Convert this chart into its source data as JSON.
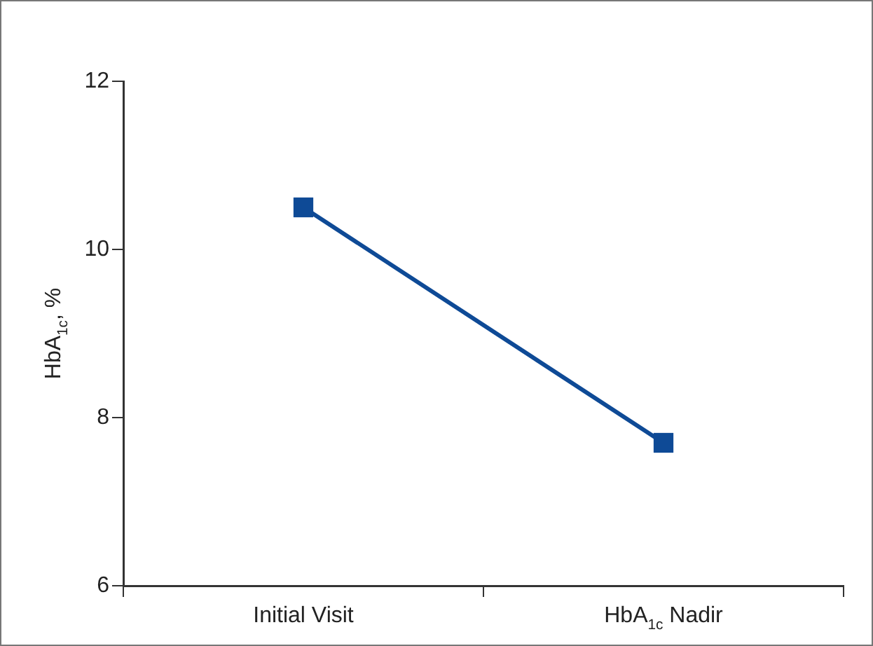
{
  "chart_data": {
    "type": "line",
    "ylabel": "HbA$_{1c}$, %",
    "categories": [
      "Initial Visit",
      "HbA$_{1c}$ Nadir"
    ],
    "series": [
      {
        "color": "#0e4a96",
        "values": [
          10.5,
          7.7
        ]
      }
    ],
    "ylim": [
      6,
      12
    ],
    "yticks": [
      6,
      8,
      10,
      12
    ],
    "grid": false,
    "legend": false,
    "marker": "square",
    "line_style": "solid"
  }
}
